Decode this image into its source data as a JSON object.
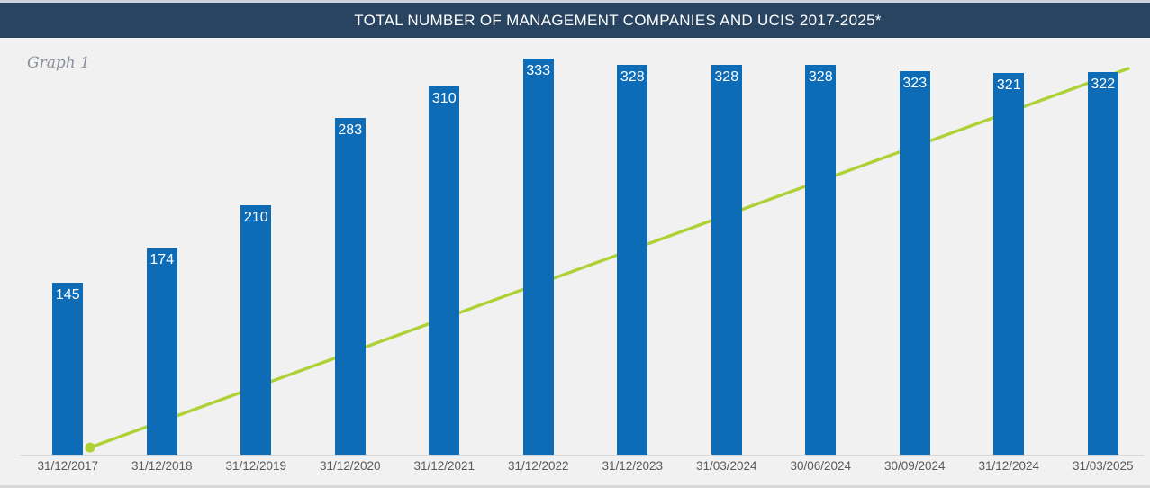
{
  "header": {
    "title": "TOTAL NUMBER OF MANAGEMENT COMPANIES AND UCIS 2017-2025*"
  },
  "graph_label": "Graph 1",
  "colors": {
    "top_strip": "#ccd2de",
    "header_bg": "#294460",
    "header_text": "#ffffff",
    "background": "#f1f1f1",
    "bar": "#0e6bb6",
    "value_label": "#ffffff",
    "line": "#aed136",
    "axis_line": "#d6d6d6",
    "tick_text": "#595959",
    "graph_label_text": "#8a9099"
  },
  "chart_data": {
    "type": "bar",
    "title": "TOTAL NUMBER OF MANAGEMENT COMPANIES AND UCIS 2017-2025*",
    "categories": [
      "31/12/2017",
      "31/12/2018",
      "31/12/2019",
      "31/12/2020",
      "31/12/2021",
      "31/12/2022",
      "31/12/2023",
      "31/03/2024",
      "30/06/2024",
      "30/09/2024",
      "31/12/2024",
      "31/03/2025"
    ],
    "series": [
      {
        "name": "management-companies",
        "type": "bar",
        "color": "#0e6bb6",
        "values": [
          145,
          174,
          210,
          283,
          310,
          333,
          328,
          328,
          328,
          323,
          321,
          322
        ],
        "data_labels": "inside-top white"
      }
    ],
    "line_overlay": {
      "type": "line",
      "name": "unlabeled-ascending-line",
      "color": "#aed136",
      "style": "straight line rising left to right, drawn behind the bars, round marker at start only, no value labels",
      "marker_at_start": true,
      "estimated_start_value": 6,
      "estimated_end_value": 325
    },
    "ylim": [
      0,
      350
    ],
    "y_axis_visible": false,
    "gridlines": false,
    "legend": "none",
    "xlabel": "",
    "ylabel": ""
  }
}
